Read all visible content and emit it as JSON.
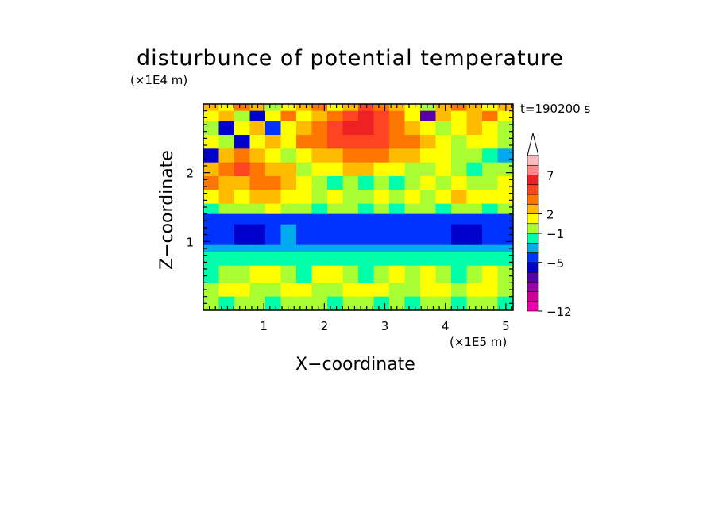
{
  "title": "disturbunce of potential temperature",
  "time_label": "t=190200 s",
  "chart_data": {
    "type": "heatmap",
    "title": "disturbunce of potential temperature",
    "xlabel": "X−coordinate",
    "ylabel": "Z−coordinate",
    "x_unit": "(×1E5 m)",
    "y_unit": "(×1E4 m)",
    "xlim": [
      0,
      5.12
    ],
    "ylim": [
      0,
      3.0
    ],
    "x_ticks": [
      1,
      2,
      3,
      4,
      5
    ],
    "x_tick_labels": [
      "1",
      "2",
      "3",
      "4",
      "5"
    ],
    "y_ticks": [
      1,
      2
    ],
    "y_tick_labels": [
      "1",
      "2"
    ],
    "colorbar": {
      "colors": [
        "#ee00aa",
        "#cc0099",
        "#9900aa",
        "#5500aa",
        "#0000cc",
        "#0033ff",
        "#00aaee",
        "#00ffaa",
        "#aaff33",
        "#ffff00",
        "#ffbb00",
        "#ff7700",
        "#ff4422",
        "#ee2222",
        "#ff8888",
        "#ffbbbb"
      ],
      "tick_labels": [
        "−12",
        "−5",
        "−1",
        "2",
        "7"
      ],
      "tick_indices": [
        0,
        5,
        8,
        10,
        14
      ],
      "extend_max": true
    },
    "bands": [
      {
        "z0": 2.9,
        "z1": 3.0,
        "levels": [
          10,
          9,
          11,
          10,
          8,
          9,
          10,
          11,
          9,
          10,
          12,
          11,
          10,
          9,
          8,
          10,
          11,
          10,
          9,
          10
        ]
      },
      {
        "z0": 2.75,
        "z1": 2.9,
        "levels": [
          9,
          10,
          8,
          4,
          9,
          11,
          9,
          10,
          11,
          12,
          13,
          12,
          11,
          9,
          3,
          10,
          9,
          10,
          11,
          9
        ]
      },
      {
        "z0": 2.55,
        "z1": 2.75,
        "levels": [
          8,
          4,
          9,
          10,
          5,
          9,
          10,
          11,
          12,
          13,
          13,
          12,
          11,
          10,
          9,
          8,
          9,
          10,
          9,
          8
        ]
      },
      {
        "z0": 2.35,
        "z1": 2.55,
        "levels": [
          9,
          8,
          4,
          9,
          10,
          9,
          11,
          11,
          12,
          12,
          12,
          12,
          11,
          11,
          10,
          9,
          8,
          9,
          9,
          8
        ]
      },
      {
        "z0": 2.15,
        "z1": 2.35,
        "levels": [
          4,
          10,
          11,
          10,
          9,
          8,
          9,
          10,
          10,
          11,
          11,
          11,
          10,
          10,
          9,
          9,
          8,
          8,
          7,
          6
        ]
      },
      {
        "z0": 1.95,
        "z1": 2.15,
        "levels": [
          10,
          11,
          12,
          11,
          10,
          10,
          8,
          9,
          9,
          10,
          10,
          9,
          9,
          8,
          8,
          9,
          8,
          7,
          8,
          8
        ]
      },
      {
        "z0": 1.75,
        "z1": 1.95,
        "levels": [
          11,
          10,
          10,
          11,
          11,
          10,
          9,
          8,
          7,
          8,
          7,
          8,
          7,
          8,
          9,
          8,
          9,
          8,
          8,
          9
        ]
      },
      {
        "z0": 1.55,
        "z1": 1.75,
        "levels": [
          9,
          10,
          9,
          10,
          10,
          9,
          9,
          8,
          9,
          8,
          8,
          9,
          8,
          9,
          8,
          9,
          10,
          9,
          9,
          9
        ]
      },
      {
        "z0": 1.4,
        "z1": 1.55,
        "levels": [
          7,
          8,
          8,
          8,
          9,
          8,
          8,
          7,
          8,
          8,
          7,
          8,
          7,
          8,
          8,
          7,
          8,
          8,
          7,
          8
        ]
      },
      {
        "z0": 1.25,
        "z1": 1.4,
        "levels": [
          5,
          5,
          5,
          5,
          5,
          5,
          5,
          5,
          5,
          5,
          5,
          5,
          5,
          5,
          5,
          5,
          5,
          5,
          5,
          5
        ]
      },
      {
        "z0": 0.95,
        "z1": 1.25,
        "levels": [
          5,
          5,
          4,
          4,
          5,
          6,
          5,
          5,
          5,
          5,
          5,
          5,
          5,
          5,
          5,
          5,
          4,
          4,
          5,
          5
        ]
      },
      {
        "z0": 0.85,
        "z1": 0.95,
        "levels": [
          6,
          6,
          6,
          6,
          6,
          6,
          6,
          6,
          6,
          6,
          6,
          6,
          6,
          6,
          6,
          6,
          6,
          6,
          6,
          6
        ]
      },
      {
        "z0": 0.65,
        "z1": 0.85,
        "levels": [
          7,
          7,
          7,
          7,
          7,
          7,
          7,
          7,
          7,
          7,
          7,
          7,
          7,
          7,
          7,
          7,
          7,
          7,
          7,
          7
        ]
      },
      {
        "z0": 0.4,
        "z1": 0.65,
        "levels": [
          7,
          8,
          8,
          9,
          9,
          8,
          7,
          9,
          9,
          8,
          7,
          8,
          9,
          8,
          9,
          8,
          7,
          8,
          9,
          8
        ]
      },
      {
        "z0": 0.2,
        "z1": 0.4,
        "levels": [
          8,
          9,
          9,
          8,
          8,
          9,
          9,
          8,
          8,
          9,
          9,
          9,
          8,
          8,
          9,
          9,
          8,
          9,
          9,
          8
        ]
      },
      {
        "z0": 0.0,
        "z1": 0.2,
        "levels": [
          8,
          7,
          8,
          8,
          7,
          8,
          8,
          8,
          7,
          8,
          8,
          7,
          8,
          7,
          8,
          8,
          7,
          8,
          8,
          7
        ]
      }
    ]
  }
}
